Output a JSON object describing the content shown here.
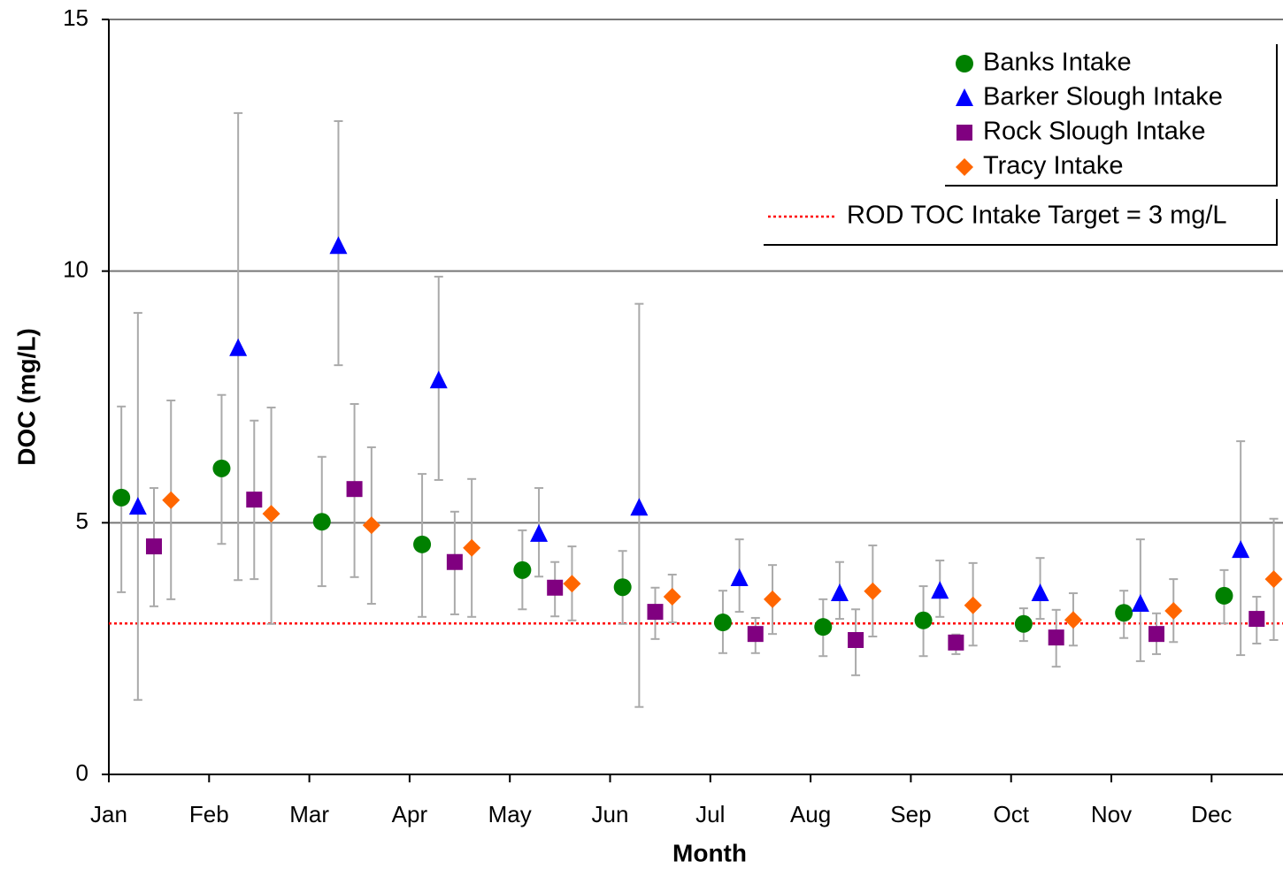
{
  "chart_data": {
    "type": "scatter",
    "y_label": "DOC (mg/L)",
    "x_label": "Month",
    "categories": [
      "Jan",
      "Feb",
      "Mar",
      "Apr",
      "May",
      "Jun",
      "Jul",
      "Aug",
      "Sep",
      "Oct",
      "Nov",
      "Dec"
    ],
    "ylim": [
      0,
      15
    ],
    "yticks": [
      0,
      5,
      10,
      15
    ],
    "grid": true,
    "legend": "upper right",
    "series": [
      {
        "name": "Banks Intake",
        "color": "#008000",
        "marker": "circle",
        "values": [
          5.5,
          6.08,
          5.02,
          4.57,
          4.06,
          3.72,
          3.02,
          2.93,
          3.06,
          2.99,
          3.21,
          3.55
        ],
        "low": [
          3.62,
          4.58,
          3.74,
          3.13,
          3.28,
          2.99,
          2.41,
          2.35,
          2.35,
          2.65,
          2.71,
          3.0
        ],
        "high": [
          7.31,
          7.54,
          6.31,
          5.97,
          4.85,
          4.44,
          3.65,
          3.48,
          3.74,
          3.3,
          3.65,
          4.06
        ]
      },
      {
        "name": "Barker Slough Intake",
        "color": "#0000ff",
        "marker": "triangle",
        "values": [
          5.32,
          8.47,
          10.5,
          7.83,
          4.78,
          5.3,
          3.9,
          3.6,
          3.65,
          3.6,
          3.39,
          4.46
        ],
        "low": [
          1.48,
          3.86,
          8.13,
          5.85,
          3.93,
          1.34,
          3.23,
          3.09,
          3.13,
          3.09,
          2.25,
          2.37
        ],
        "high": [
          9.17,
          13.14,
          12.98,
          9.89,
          5.69,
          9.35,
          4.67,
          4.22,
          4.25,
          4.3,
          4.67,
          6.62
        ]
      },
      {
        "name": "Rock Slough Intake",
        "color": "#800080",
        "marker": "square",
        "values": [
          4.53,
          5.46,
          5.67,
          4.22,
          3.71,
          3.23,
          2.79,
          2.67,
          2.62,
          2.72,
          2.79,
          3.09
        ],
        "low": [
          3.34,
          3.88,
          3.92,
          3.18,
          3.14,
          2.69,
          2.41,
          1.97,
          2.39,
          2.14,
          2.39,
          2.6
        ],
        "high": [
          5.69,
          7.03,
          7.36,
          5.22,
          4.22,
          3.71,
          3.11,
          3.28,
          2.78,
          3.27,
          3.2,
          3.53
        ]
      },
      {
        "name": "Tracy Intake",
        "color": "#ff6600",
        "marker": "diamond",
        "values": [
          5.45,
          5.18,
          4.95,
          4.5,
          3.79,
          3.53,
          3.48,
          3.64,
          3.36,
          3.07,
          3.25,
          3.88
        ],
        "low": [
          3.48,
          2.99,
          3.39,
          3.13,
          3.06,
          3.02,
          2.79,
          2.74,
          2.56,
          2.56,
          2.63,
          2.67
        ],
        "high": [
          7.43,
          7.29,
          6.5,
          5.87,
          4.53,
          3.97,
          4.16,
          4.55,
          4.2,
          3.6,
          3.88,
          5.08
        ]
      }
    ],
    "reference_line": {
      "value": 3,
      "label": "ROD TOC Intake Target = 3 mg/L",
      "color": "#ff0000"
    }
  }
}
